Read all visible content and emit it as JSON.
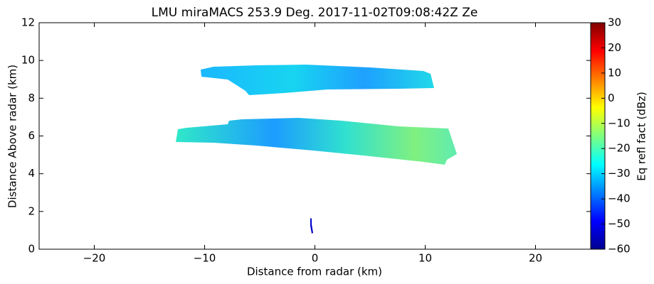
{
  "chart_data": {
    "type": "rhi",
    "title": "LMU miraMACS 253.9 Deg. 2017-11-02T09:08:42Z  Ze",
    "x_label": "Distance from radar (km)",
    "y_label": "Distance Above radar  (km)",
    "xlim": [
      -25,
      25
    ],
    "xticks": [
      {
        "value": -20,
        "label": "−20"
      },
      {
        "value": -10,
        "label": "−10"
      },
      0,
      10,
      20
    ],
    "ylim": [
      0,
      12
    ],
    "yticks": [
      0,
      2,
      4,
      6,
      8,
      10,
      12
    ],
    "colorbar": {
      "label": "Eq refl fact (dBz)",
      "colormap": "jet",
      "lim": [
        -60,
        30
      ],
      "ticks": [
        {
          "value": -60,
          "label": "−60"
        },
        {
          "value": -50,
          "label": "−50"
        },
        {
          "value": -40,
          "label": "−40"
        },
        {
          "value": -30,
          "label": "−30"
        },
        {
          "value": -20,
          "label": "−20"
        },
        {
          "value": -10,
          "label": "−10"
        },
        0,
        10,
        20,
        30
      ]
    }
  }
}
